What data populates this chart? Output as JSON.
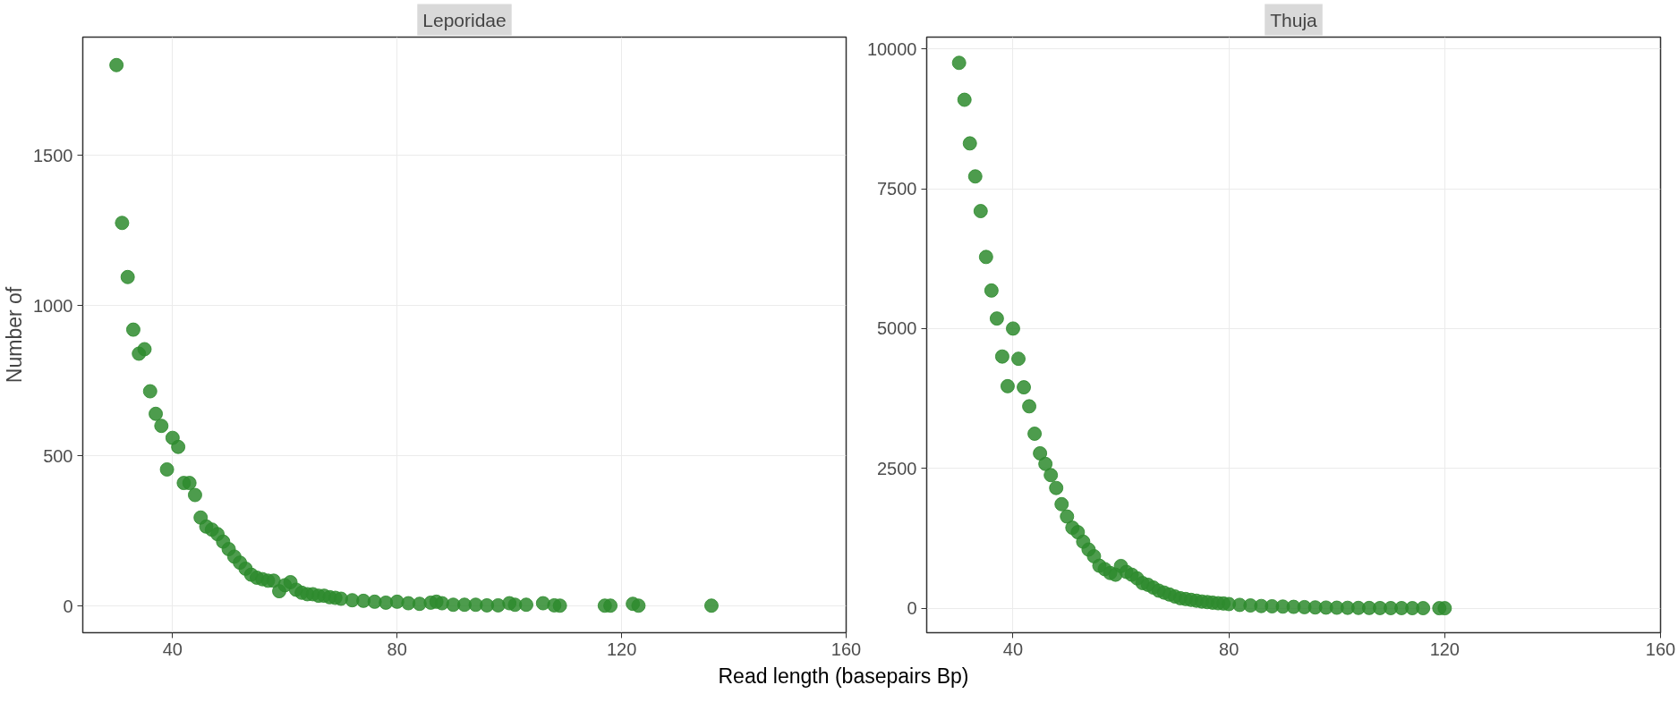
{
  "chart_data": [
    {
      "type": "scatter",
      "title": "Leporidae",
      "ylabel": "Number of",
      "xlabel": "Read length (basepairs Bp)",
      "marker": "circle",
      "grid": true,
      "xlim": [
        24,
        160
      ],
      "xticks": [
        40,
        80,
        120,
        160
      ],
      "ylim": [
        -88,
        1893
      ],
      "yticks": [
        0,
        500,
        1000,
        1500
      ],
      "series": [
        {
          "color": "#2e8b2e",
          "x": [
            30,
            31,
            32,
            33,
            34,
            35,
            36,
            37,
            38,
            39,
            40,
            41,
            42,
            43,
            44,
            45,
            46,
            47,
            48,
            49,
            50,
            51,
            52,
            53,
            54,
            55,
            56,
            57,
            58,
            59,
            60,
            61,
            62,
            63,
            64,
            65,
            66,
            67,
            68,
            69,
            70,
            72,
            74,
            76,
            78,
            80,
            82,
            84,
            86,
            87,
            88,
            90,
            92,
            94,
            96,
            98,
            100,
            101,
            103,
            106,
            108,
            109,
            117,
            118,
            122,
            123,
            136
          ],
          "values": [
            1800,
            1275,
            1095,
            920,
            840,
            855,
            715,
            640,
            600,
            455,
            560,
            530,
            410,
            410,
            370,
            295,
            265,
            255,
            240,
            215,
            190,
            165,
            145,
            125,
            105,
            95,
            90,
            85,
            85,
            50,
            70,
            80,
            55,
            45,
            40,
            40,
            35,
            35,
            30,
            28,
            25,
            20,
            18,
            15,
            12,
            15,
            10,
            8,
            12,
            15,
            10,
            5,
            5,
            5,
            3,
            3,
            10,
            5,
            5,
            10,
            3,
            2,
            2,
            2,
            8,
            2,
            2
          ]
        }
      ]
    },
    {
      "type": "scatter",
      "title": "Thuja",
      "marker": "circle",
      "grid": true,
      "xlim": [
        24,
        160
      ],
      "xticks": [
        40,
        80,
        120,
        160
      ],
      "ylim": [
        -437,
        10210
      ],
      "yticks": [
        0,
        2500,
        5000,
        7500,
        10000
      ],
      "series": [
        {
          "color": "#2e8b2e",
          "x": [
            30,
            31,
            32,
            33,
            34,
            35,
            36,
            37,
            38,
            39,
            40,
            41,
            42,
            43,
            44,
            45,
            46,
            47,
            48,
            49,
            50,
            51,
            52,
            53,
            54,
            55,
            56,
            57,
            58,
            59,
            60,
            61,
            62,
            63,
            64,
            65,
            66,
            67,
            68,
            69,
            70,
            71,
            72,
            73,
            74,
            75,
            76,
            77,
            78,
            79,
            80,
            82,
            84,
            86,
            88,
            90,
            92,
            94,
            96,
            98,
            100,
            102,
            104,
            106,
            108,
            110,
            112,
            114,
            116,
            119,
            120
          ],
          "values": [
            9750,
            9090,
            8310,
            7720,
            7100,
            6280,
            5680,
            5180,
            4500,
            3970,
            5000,
            4460,
            3950,
            3610,
            3120,
            2770,
            2580,
            2380,
            2150,
            1860,
            1640,
            1440,
            1360,
            1190,
            1050,
            930,
            760,
            700,
            630,
            600,
            755,
            650,
            600,
            535,
            450,
            420,
            370,
            315,
            280,
            245,
            210,
            180,
            165,
            150,
            135,
            120,
            110,
            100,
            90,
            85,
            75,
            60,
            50,
            40,
            35,
            30,
            25,
            20,
            15,
            12,
            10,
            8,
            6,
            5,
            4,
            3,
            3,
            2,
            2,
            1,
            1
          ]
        }
      ]
    }
  ]
}
